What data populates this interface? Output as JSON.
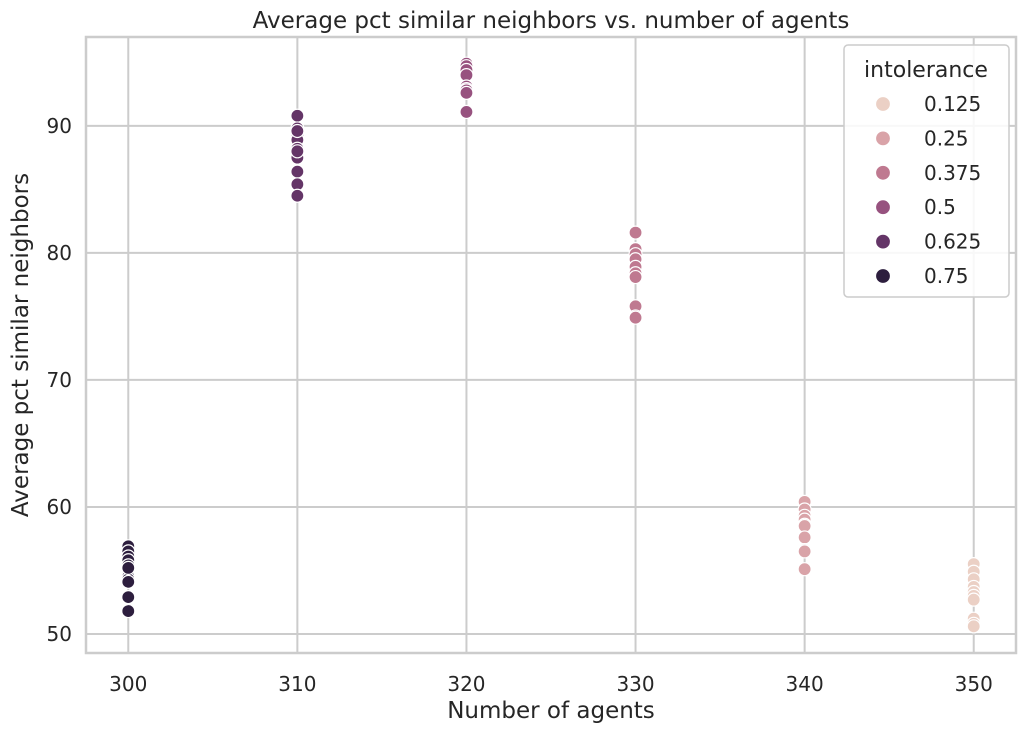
{
  "chart_data": {
    "type": "scatter",
    "title": "Average pct similar neighbors vs. number of agents",
    "xlabel": "Number of agents",
    "ylabel": "Average pct similar neighbors",
    "xlim": [
      297.5,
      352.5
    ],
    "ylim": [
      48.5,
      97.0
    ],
    "xticks": [
      300,
      310,
      320,
      330,
      340,
      350
    ],
    "yticks": [
      50,
      60,
      70,
      80,
      90
    ],
    "grid": true,
    "legend": {
      "title": "intolerance",
      "placement": "top-right"
    },
    "series": [
      {
        "name": "0.125",
        "color": "#ebd0c5",
        "x": [
          350,
          350,
          350,
          350,
          350,
          350,
          350,
          350,
          350,
          350
        ],
        "y": [
          55.5,
          54.9,
          54.3,
          53.7,
          53.3,
          53.0,
          52.7,
          51.2,
          50.8,
          50.6
        ]
      },
      {
        "name": "0.25",
        "color": "#d9a3a8",
        "x": [
          340,
          340,
          340,
          340,
          340,
          340,
          340,
          340,
          340,
          340
        ],
        "y": [
          60.4,
          59.8,
          59.3,
          59.0,
          58.6,
          58.5,
          57.6,
          56.6,
          56.5,
          55.1
        ]
      },
      {
        "name": "0.375",
        "color": "#bf7990",
        "x": [
          330,
          330,
          330,
          330,
          330,
          330,
          330,
          330,
          330,
          330
        ],
        "y": [
          81.6,
          80.3,
          79.9,
          79.5,
          78.9,
          78.4,
          78.1,
          75.8,
          75.0,
          74.9
        ]
      },
      {
        "name": "0.5",
        "color": "#97527f",
        "x": [
          320,
          320,
          320,
          320,
          320,
          320,
          320,
          320,
          320,
          320
        ],
        "y": [
          94.9,
          94.7,
          94.4,
          94.0,
          93.1,
          92.9,
          92.8,
          92.6,
          91.1,
          91.1
        ]
      },
      {
        "name": "0.625",
        "color": "#643567",
        "x": [
          310,
          310,
          310,
          310,
          310,
          310,
          310,
          310,
          310,
          310,
          310,
          310
        ],
        "y": [
          90.8,
          89.8,
          89.3,
          88.9,
          88.2,
          87.9,
          87.5,
          86.4,
          85.4,
          84.5,
          89.6,
          88.0
        ]
      },
      {
        "name": "0.75",
        "color": "#2d1e3e",
        "x": [
          300,
          300,
          300,
          300,
          300,
          300,
          300,
          300,
          300,
          300,
          300,
          300
        ],
        "y": [
          56.9,
          56.5,
          56.1,
          55.8,
          55.4,
          55.0,
          54.5,
          54.3,
          54.1,
          52.9,
          51.8,
          55.2
        ]
      }
    ]
  }
}
